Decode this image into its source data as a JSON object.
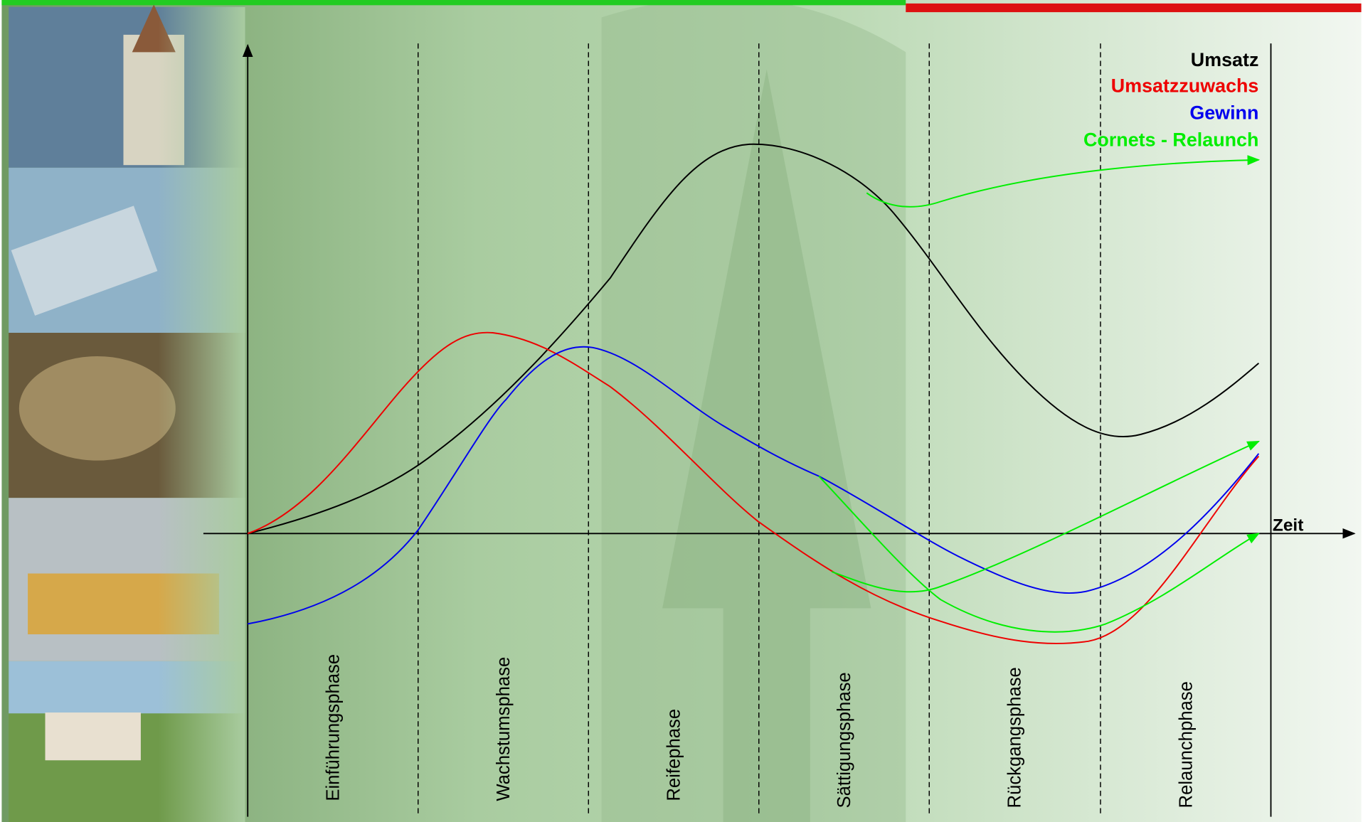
{
  "legend": [
    "Umsatz",
    "Umsatzzuwachs",
    "Gewinn",
    "Cornets - Relaunch"
  ],
  "x_axis_label": "Zeit",
  "phases": [
    "Einführungsphase",
    "Wachstumsphase",
    "Reifephase",
    "Sättigungsphase",
    "Rückgangsphase",
    "Relaunchphase"
  ]
}
